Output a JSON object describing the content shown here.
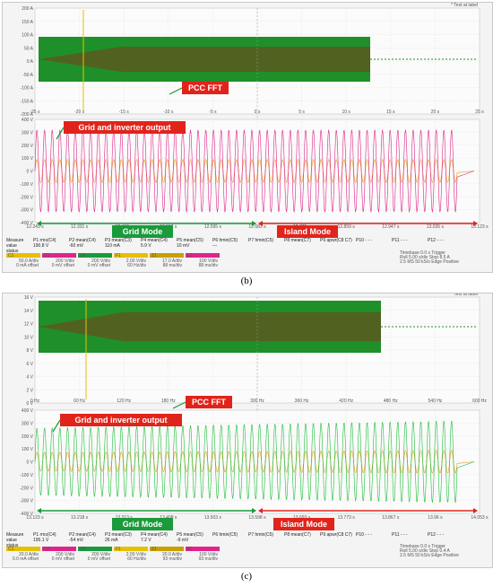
{
  "panel_b": {
    "text_at_label": "* Text at label",
    "fft_y_ticks": [
      "200 A",
      "150 A",
      "100 A",
      "50 A",
      "0 A",
      "-50 A",
      "-100 A",
      "-150 A",
      "-200 A"
    ],
    "fft_x_ticks": [
      "-25 s",
      "-20 s",
      "-15 s",
      "-10 s",
      "-5 s",
      "0 s",
      "5 s",
      "10 s",
      "15 s",
      "20 s",
      "25 s"
    ],
    "time_y_ticks": [
      "400 V",
      "300 V",
      "200 V",
      "100 V",
      "0 V",
      "-100 V",
      "-200 V",
      "-300 V",
      "-400 V"
    ],
    "time_x_ticks": [
      "12.243 s",
      "12.331 s",
      "12.419 s",
      "12.507 s",
      "12.595 s",
      "12.683 s",
      "12.771 s",
      "12.859 s",
      "12.947 s",
      "13.035 s",
      "13.123 s"
    ],
    "pcc_fft": "PCC FFT",
    "grid_inverter": "Grid and inverter output",
    "grid_mode": "Grid Mode",
    "island_mode": "Island Mode",
    "measure_rows": {
      "headers": [
        "Measure",
        "P1 rms(C4)",
        "P2 mean(C4)",
        "P3 mean(C3)",
        "P4 mean(C4)",
        "P5 mean(C5)",
        "P6 hmin(C5)",
        "P7 hmin(C5)",
        "P8 mean(C7)",
        "P9 apwr(C8 C7)",
        "P10 - - -",
        "P11 - - -",
        "P12 - - -"
      ],
      "values": [
        "value",
        "190.8 V",
        "-60 mV",
        "110 mA",
        "5.9 V",
        "10 mV",
        "---",
        "",
        "",
        "",
        "",
        "",
        ""
      ],
      "status": [
        "status",
        "",
        "",
        "",
        "",
        "",
        "",
        "",
        "",
        "",
        "",
        "",
        ""
      ]
    },
    "channels": [
      {
        "name": "C1",
        "lines": [
          "50.0 A/div",
          "0 mA offset"
        ]
      },
      {
        "name": "C2",
        "lines": [
          "200 V/div",
          "0 mV offset"
        ]
      },
      {
        "name": "C4",
        "lines": [
          "200 V/div",
          "0 mV offset"
        ]
      },
      {
        "name": "F1",
        "lines": [
          "2.00 V/div",
          "60 Hz/div"
        ]
      },
      {
        "name": "Z1",
        "lines": [
          "17.0 A/div",
          "88 ms/div"
        ]
      },
      {
        "name": "Z2",
        "lines": [
          "100 V/div",
          "88 ms/div"
        ]
      }
    ],
    "timebase": {
      "lines": [
        "Timebase  0.0 s  Trigger",
        "Roll  5.00 s/div  Stop  8.5 A",
        "2.5 MS  50 kS/s  Edge  Positive"
      ]
    },
    "caption": "(b)"
  },
  "panel_c": {
    "text_at_label": "* Text at label",
    "fft_y_ticks": [
      "16 V",
      "14 V",
      "12 V",
      "10 V",
      "8 V",
      "6 V",
      "4 V",
      "2 V",
      "0 V"
    ],
    "fft_x_ticks": [
      "0 Hz",
      "60 Hz",
      "120 Hz",
      "180 Hz",
      "240 Hz",
      "300 Hz",
      "360 Hz",
      "420 Hz",
      "480 Hz",
      "540 Hz",
      "600 Hz"
    ],
    "time_y_ticks": [
      "400 V",
      "300 V",
      "200 V",
      "100 V",
      "0 V",
      "-100 V",
      "-200 V",
      "-300 V",
      "-400 V"
    ],
    "time_x_ticks": [
      "13.123 s",
      "13.218 s",
      "13.313 s",
      "13.408 s",
      "13.503 s",
      "13.598 s",
      "13.693 s",
      "13.773 s",
      "13.867 s",
      "13.96 s",
      "14.053 s"
    ],
    "pcc_fft": "PCC FFT",
    "grid_inverter": "Grid and inverter output",
    "grid_mode": "Grid Mode",
    "island_mode": "Island Mode",
    "measure_rows": {
      "headers": [
        "Measure",
        "P1 rms(C4)",
        "P2 mean(C4)",
        "P3 mean(C3)",
        "P4 mean(C4)",
        "P5 mean(C5)",
        "P6 hmin(C5)",
        "P7 hmin(C5)",
        "P8 mean(C7)",
        "P9 apwr(C8 C7)",
        "P10 - - -",
        "P11 - - -",
        "P12 - - -"
      ],
      "values": [
        "value",
        "195.1 V",
        "-54 mV",
        "26 mA",
        "7.2 V",
        "-9 mV",
        "",
        "",
        "",
        "",
        "",
        "",
        ""
      ],
      "status": [
        "status",
        "",
        "",
        "",
        "",
        "",
        "",
        "",
        "",
        "",
        "",
        "",
        ""
      ]
    },
    "channels": [
      {
        "name": "C1",
        "lines": [
          "20.0 A/div",
          "0.0 mA offset"
        ]
      },
      {
        "name": "C2",
        "lines": [
          "200 V/div",
          "0 mV offset"
        ]
      },
      {
        "name": "C4",
        "lines": [
          "200 V/div",
          "0 mV offset"
        ]
      },
      {
        "name": "F1",
        "lines": [
          "2.00 V/div",
          "60 Hz/div"
        ]
      },
      {
        "name": "Z1",
        "lines": [
          "20.0 A/div",
          "93 ms/div"
        ]
      },
      {
        "name": "Z2",
        "lines": [
          "100 V/div",
          "93 ms/div"
        ]
      }
    ],
    "timebase": {
      "lines": [
        "Timebase  0.0 s  Trigger",
        "Roll  5.00 s/div  Stop  0.4 A",
        "2.5 MS  50 kS/s  Edge  Positive"
      ]
    },
    "caption": "(c)"
  }
}
